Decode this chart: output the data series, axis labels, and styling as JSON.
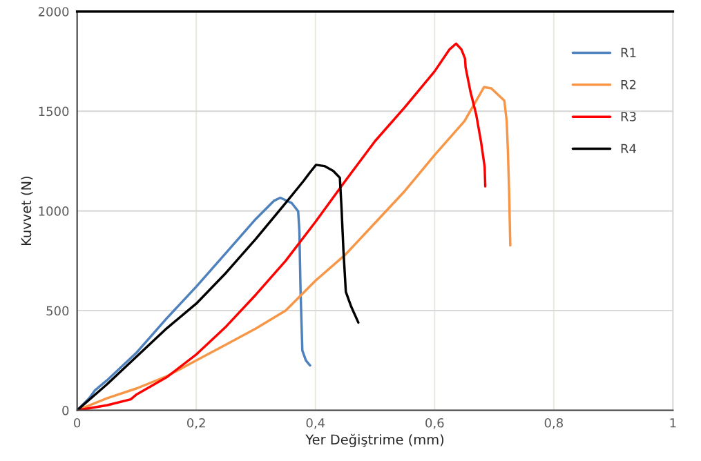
{
  "chart_data": {
    "type": "line",
    "xlabel": "Yer Değiştrime (mm)",
    "ylabel": "Kuvvet (N)",
    "xlim": [
      0,
      1
    ],
    "ylim": [
      0,
      2000
    ],
    "xticks": [
      0,
      {
        "value": 0.2,
        "label": "0,2"
      },
      {
        "value": 0.4,
        "label": "0,4"
      },
      {
        "value": 0.6,
        "label": "0,6"
      },
      {
        "value": 0.8,
        "label": "0,8"
      },
      1
    ],
    "yticks": [
      0,
      500,
      1000,
      1500,
      2000
    ],
    "grid": true,
    "legend": "top right",
    "marker": "none",
    "line_style": "solid",
    "series": [
      {
        "name": "R1",
        "color": "#4f81bd",
        "x": [
          0,
          0.02,
          0.03,
          0.05,
          0.1,
          0.15,
          0.2,
          0.25,
          0.3,
          0.33,
          0.341,
          0.36,
          0.371,
          0.373,
          0.375,
          0.378,
          0.384,
          0.391
        ],
        "values": [
          0,
          60,
          100,
          150,
          290,
          460,
          620,
          790,
          960,
          1050,
          1066,
          1040,
          998,
          900,
          600,
          300,
          250,
          225
        ]
      },
      {
        "name": "R2",
        "color": "#f79646",
        "x": [
          0,
          0.05,
          0.1,
          0.15,
          0.2,
          0.25,
          0.3,
          0.35,
          0.4,
          0.45,
          0.5,
          0.55,
          0.6,
          0.65,
          0.683,
          0.695,
          0.717,
          0.721,
          0.723,
          0.725,
          0.727
        ],
        "values": [
          0,
          60,
          110,
          170,
          250,
          330,
          410,
          500,
          650,
          780,
          940,
          1100,
          1280,
          1450,
          1621,
          1615,
          1553,
          1450,
          1300,
          1100,
          827
        ]
      },
      {
        "name": "R3",
        "color": "#ff0000",
        "x": [
          0,
          0.05,
          0.09,
          0.1,
          0.15,
          0.2,
          0.25,
          0.3,
          0.35,
          0.4,
          0.45,
          0.5,
          0.55,
          0.6,
          0.625,
          0.636,
          0.645,
          0.651,
          0.652,
          0.66,
          0.67,
          0.678,
          0.684,
          0.685
        ],
        "values": [
          0,
          25,
          55,
          80,
          165,
          280,
          420,
          580,
          750,
          945,
          1150,
          1350,
          1520,
          1700,
          1810,
          1839,
          1810,
          1764,
          1720,
          1600,
          1480,
          1345,
          1220,
          1123
        ]
      },
      {
        "name": "R4",
        "color": "#000000",
        "x": [
          0,
          0.05,
          0.1,
          0.15,
          0.2,
          0.25,
          0.3,
          0.35,
          0.38,
          0.39,
          0.401,
          0.415,
          0.43,
          0.441,
          0.444,
          0.447,
          0.451,
          0.46,
          0.472
        ],
        "values": [
          0,
          130,
          270,
          410,
          535,
          690,
          860,
          1040,
          1150,
          1190,
          1231,
          1225,
          1200,
          1166,
          1000,
          800,
          594,
          520,
          440
        ]
      }
    ]
  }
}
